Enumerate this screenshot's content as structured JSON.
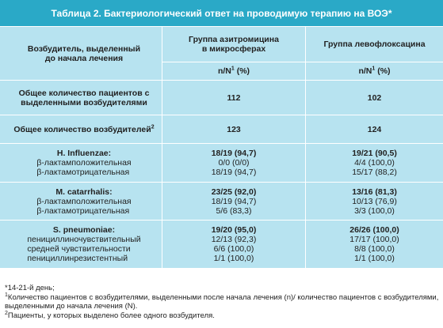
{
  "title": "Таблица 2. Бактериологический ответ на проводимую терапию на ВОЭ*",
  "header": {
    "col1": [
      "Возбудитель, выделенный",
      "до начала лечения"
    ],
    "col2": [
      "Группа азитромицина",
      "в микросферах"
    ],
    "col3": "Группа левофлоксацина",
    "unit_prefix": "n/N",
    "unit_sup": "1",
    "unit_suffix": " (%)"
  },
  "rows": {
    "patients": {
      "label": [
        "Общее количество пациентов с",
        "выделенными возбудителями"
      ],
      "azi": "112",
      "levo": "102"
    },
    "pathogens": {
      "label": "Общее количество возбудителей",
      "label_sup": "2",
      "azi": "123",
      "levo": "124"
    },
    "hinfluenzae": {
      "labels": [
        "H. Influenzae:",
        "β-лактамположительная",
        "β-лактамотрицательная"
      ],
      "azi": [
        "18/19 (94,7)",
        "0/0 (0/0)",
        "18/19 (94,7)"
      ],
      "levo": [
        "19/21 (90,5)",
        "4/4 (100,0)",
        "15/17 (88,2)"
      ]
    },
    "mcatarrhalis": {
      "labels": [
        "M. catarrhalis:",
        "β-лактамположительная",
        "β-лактамотрицательная"
      ],
      "azi": [
        "23/25 (92,0)",
        "18/19 (94,7)",
        "5/6 (83,3)"
      ],
      "levo": [
        "13/16 (81,3)",
        "10/13 (76,9)",
        "3/3 (100,0)"
      ]
    },
    "spneumoniae": {
      "labels": [
        "S. pneumoniae:",
        "пенициллиночувствительный",
        "средней чувствительности",
        "пенициллинрезистентный"
      ],
      "azi": [
        "19/20 (95,0)",
        "12/13 (92,3)",
        "6/6 (100,0)",
        "1/1 (100,0)"
      ],
      "levo": [
        "26/26 (100,0)",
        "17/17 (100,0)",
        "8/8 (100,0)",
        "1/1 (100,0)"
      ]
    }
  },
  "footnotes": {
    "star": "*14-21-й день;",
    "note1_sup": "1",
    "note1": "Количество пациентов с возбудителями, выделенными после начала лечения (n)/ количество пациентов с возбудителями,",
    "note1_cont": "выделенными до начала лечения (N).",
    "note2_sup": "2",
    "note2": "Пациенты, у которых выделено более одного возбудителя."
  },
  "colors": {
    "title_bg": "#2aa9c7",
    "table_bg": "#b7e3f0",
    "divider": "#ffffff"
  }
}
